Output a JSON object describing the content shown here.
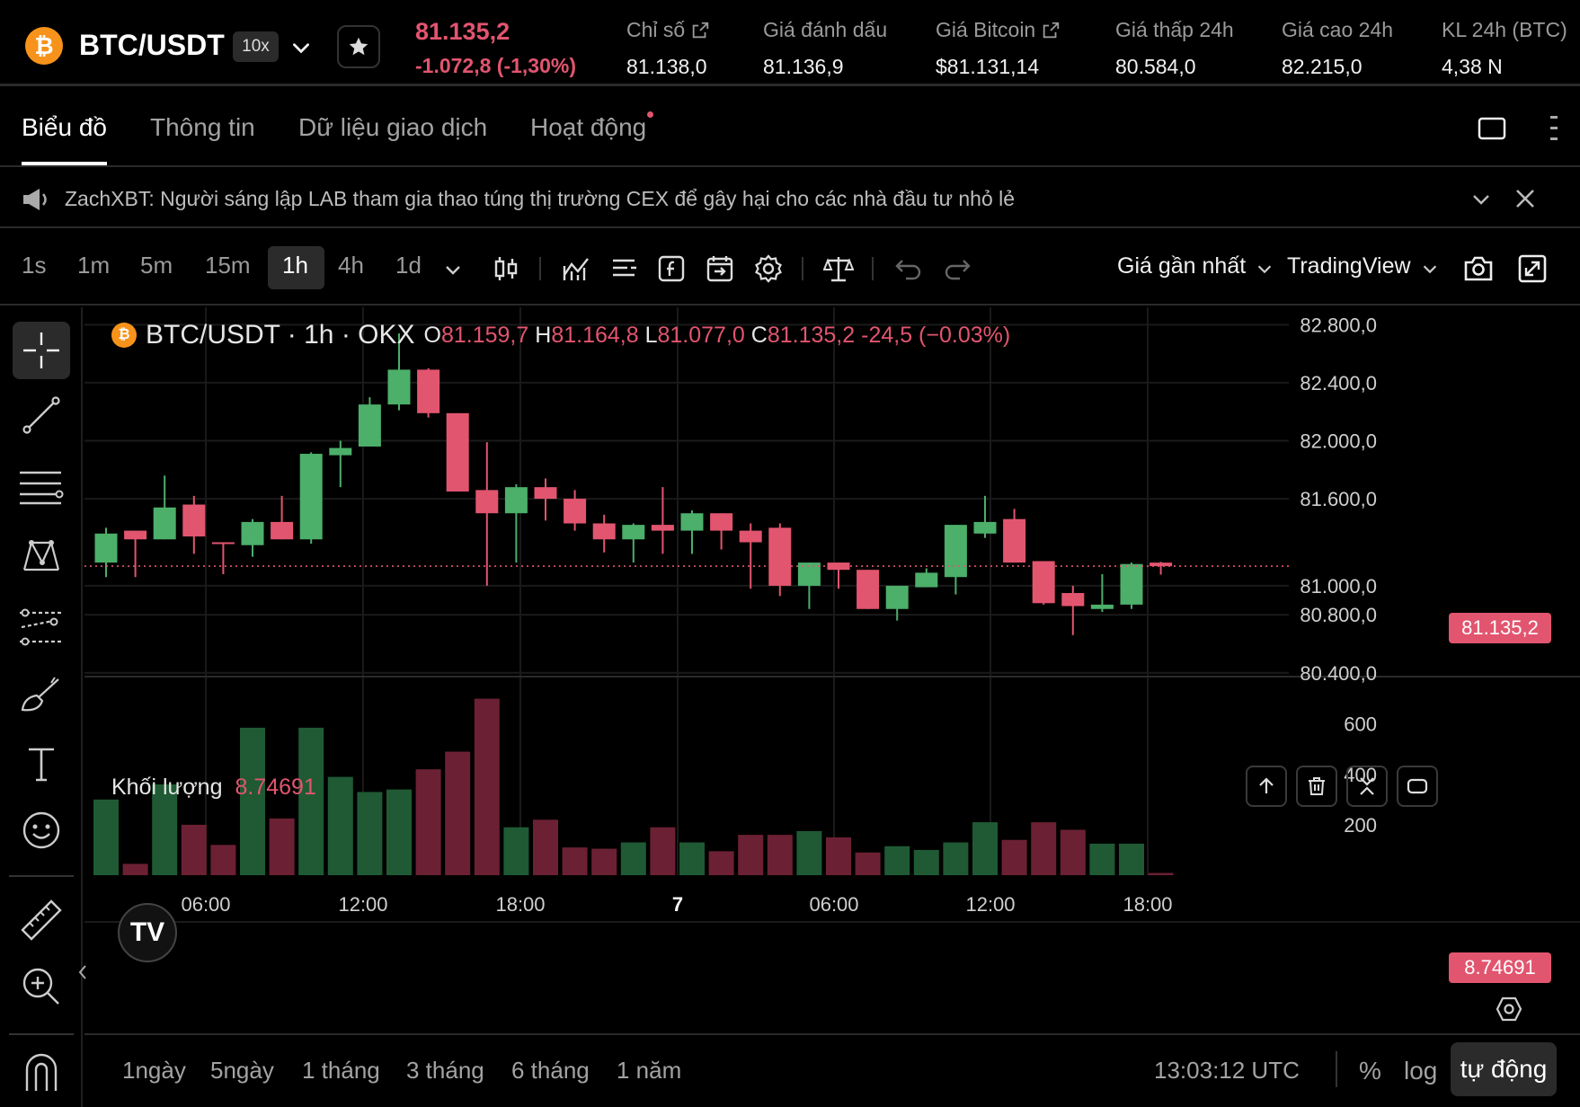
{
  "ticker": {
    "pair": "BTC/USDT",
    "leverage": "10x",
    "last_price": "81.135,2",
    "change": "-1.072,8 (-1,30%)",
    "stats": [
      {
        "label": "Chỉ số",
        "value": "81.138,0",
        "link": true
      },
      {
        "label": "Giá đánh dấu",
        "value": "81.136,9",
        "link": false
      },
      {
        "label": "Giá Bitcoin",
        "value": "$81.131,14",
        "link": true
      },
      {
        "label": "Giá thấp 24h",
        "value": "80.584,0",
        "link": false
      },
      {
        "label": "Giá cao 24h",
        "value": "82.215,0",
        "link": false
      },
      {
        "label": "KL 24h (BTC)",
        "value": "4,38 N",
        "link": false
      }
    ]
  },
  "tabs": [
    {
      "label": "Biểu đồ",
      "active": true
    },
    {
      "label": "Thông tin",
      "active": false
    },
    {
      "label": "Dữ liệu giao dịch",
      "active": false
    },
    {
      "label": "Hoạt động",
      "active": false
    }
  ],
  "notice": {
    "text": "ZachXBT: Người sáng lập LAB tham gia thao túng thị trường CEX để gây hại cho các nhà đầu tư nhỏ lẻ"
  },
  "toolbar": {
    "intervals": [
      "1s",
      "1m",
      "5m",
      "15m",
      "1h",
      "4h",
      "1d"
    ],
    "active_interval": "1h",
    "price_source": "Giá gần nhất",
    "chart_engine": "TradingView"
  },
  "legend": {
    "title": "BTC/USDT · 1h · OKX",
    "o_label": "O",
    "o": "81.159,7",
    "h_label": "H",
    "h": "81.164,8",
    "l_label": "L",
    "l": "81.077,0",
    "c_label": "C",
    "c": "81.135,2",
    "delta": "-24,5 (−0.03%)"
  },
  "volume_legend": {
    "label": "Khối lượng",
    "value": "8.74691"
  },
  "price_badge": "81.135,2",
  "volume_badge": "8.74691",
  "tv_logo": "TV",
  "bottom": {
    "ranges": [
      "1ngày",
      "5ngày",
      "1 tháng",
      "3 tháng",
      "6 tháng",
      "1 năm"
    ],
    "time": "13:03:12 UTC",
    "pct": "%",
    "log": "log",
    "auto": "tự động"
  },
  "colors": {
    "up": "#4caf6a",
    "down": "#e2556f",
    "up_vol": "#1f5a34",
    "down_vol": "#6b2133",
    "grid": "#1a1a1a"
  },
  "chart_data": {
    "type": "candlestick",
    "price_axis_ticks": [
      "82.800,0",
      "82.400,0",
      "82.000,0",
      "81.600,0",
      "81.000,0",
      "80.800,0",
      "80.400,0"
    ],
    "price_axis_tick_values": [
      82800,
      82400,
      82000,
      81600,
      81000,
      80800,
      80400
    ],
    "volume_axis_ticks": [
      "600",
      "400",
      "200"
    ],
    "volume_axis_tick_values": [
      600,
      400,
      200
    ],
    "time_axis_labels": [
      "06:00",
      "12:00",
      "18:00",
      "7",
      "06:00",
      "12:00",
      "18:00"
    ],
    "price_ylim": [
      80380,
      82920
    ],
    "volume_ylim": [
      0,
      720
    ],
    "last_price": 81135.2,
    "candles": [
      {
        "o": 81160,
        "h": 81400,
        "l": 81060,
        "c": 81360,
        "v": 300
      },
      {
        "o": 81380,
        "h": 81380,
        "l": 81060,
        "c": 81320,
        "v": 45
      },
      {
        "o": 81320,
        "h": 81760,
        "l": 81320,
        "c": 81540,
        "v": 360
      },
      {
        "o": 81560,
        "h": 81620,
        "l": 81220,
        "c": 81340,
        "v": 200
      },
      {
        "o": 81300,
        "h": 81300,
        "l": 81080,
        "c": 81290,
        "v": 120
      },
      {
        "o": 81280,
        "h": 81460,
        "l": 81200,
        "c": 81440,
        "v": 585
      },
      {
        "o": 81440,
        "h": 81620,
        "l": 81320,
        "c": 81320,
        "v": 225
      },
      {
        "o": 81320,
        "h": 81920,
        "l": 81290,
        "c": 81910,
        "v": 585
      },
      {
        "o": 81900,
        "h": 82000,
        "l": 81680,
        "c": 81950,
        "v": 390
      },
      {
        "o": 81960,
        "h": 82300,
        "l": 81960,
        "c": 82250,
        "v": 330
      },
      {
        "o": 82250,
        "h": 82740,
        "l": 82210,
        "c": 82490,
        "v": 340
      },
      {
        "o": 82490,
        "h": 82500,
        "l": 82160,
        "c": 82190,
        "v": 420
      },
      {
        "o": 82190,
        "h": 82190,
        "l": 81650,
        "c": 81650,
        "v": 490
      },
      {
        "o": 81660,
        "h": 81990,
        "l": 81000,
        "c": 81500,
        "v": 700
      },
      {
        "o": 81500,
        "h": 81700,
        "l": 81160,
        "c": 81680,
        "v": 190
      },
      {
        "o": 81680,
        "h": 81740,
        "l": 81450,
        "c": 81600,
        "v": 220
      },
      {
        "o": 81600,
        "h": 81660,
        "l": 81380,
        "c": 81430,
        "v": 110
      },
      {
        "o": 81430,
        "h": 81490,
        "l": 81230,
        "c": 81320,
        "v": 105
      },
      {
        "o": 81320,
        "h": 81430,
        "l": 81160,
        "c": 81420,
        "v": 130
      },
      {
        "o": 81420,
        "h": 81680,
        "l": 81220,
        "c": 81380,
        "v": 190
      },
      {
        "o": 81380,
        "h": 81520,
        "l": 81220,
        "c": 81500,
        "v": 130
      },
      {
        "o": 81500,
        "h": 81500,
        "l": 81250,
        "c": 81380,
        "v": 95
      },
      {
        "o": 81380,
        "h": 81430,
        "l": 80980,
        "c": 81300,
        "v": 160
      },
      {
        "o": 81400,
        "h": 81430,
        "l": 80930,
        "c": 81000,
        "v": 160
      },
      {
        "o": 81000,
        "h": 81160,
        "l": 80840,
        "c": 81160,
        "v": 175
      },
      {
        "o": 81160,
        "h": 81160,
        "l": 80980,
        "c": 81110,
        "v": 150
      },
      {
        "o": 81110,
        "h": 81110,
        "l": 80840,
        "c": 80840,
        "v": 90
      },
      {
        "o": 80840,
        "h": 80990,
        "l": 80760,
        "c": 81000,
        "v": 115
      },
      {
        "o": 80990,
        "h": 81120,
        "l": 80990,
        "c": 81090,
        "v": 100
      },
      {
        "o": 81060,
        "h": 81420,
        "l": 80940,
        "c": 81420,
        "v": 130
      },
      {
        "o": 81360,
        "h": 81620,
        "l": 81330,
        "c": 81440,
        "v": 210
      },
      {
        "o": 81460,
        "h": 81530,
        "l": 81160,
        "c": 81160,
        "v": 140
      },
      {
        "o": 81170,
        "h": 81170,
        "l": 80870,
        "c": 80880,
        "v": 210
      },
      {
        "o": 80950,
        "h": 81000,
        "l": 80660,
        "c": 80860,
        "v": 180
      },
      {
        "o": 80840,
        "h": 81080,
        "l": 80820,
        "c": 80870,
        "v": 125
      },
      {
        "o": 80870,
        "h": 81160,
        "l": 80840,
        "c": 81150,
        "v": 125
      },
      {
        "o": 81159.7,
        "h": 81164.8,
        "l": 81077,
        "c": 81135.2,
        "v": 8.74691
      }
    ]
  }
}
